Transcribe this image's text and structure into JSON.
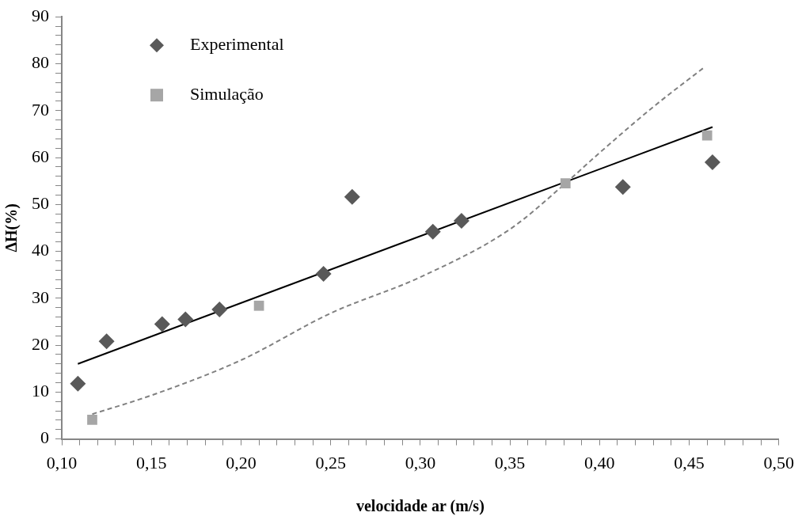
{
  "chart_data": {
    "type": "scatter",
    "xlabel": "velocidade ar (m/s)",
    "ylabel": "ΔH(%)",
    "xlim": [
      0.1,
      0.5
    ],
    "ylim": [
      0,
      90
    ],
    "xticks": [
      {
        "value": 0.1,
        "label": "0,10"
      },
      {
        "value": 0.11,
        "label": null
      },
      {
        "value": 0.12,
        "label": null
      },
      {
        "value": 0.13,
        "label": null
      },
      {
        "value": 0.14,
        "label": null
      },
      {
        "value": 0.15,
        "label": "0,15"
      },
      {
        "value": 0.16,
        "label": null
      },
      {
        "value": 0.17,
        "label": null
      },
      {
        "value": 0.18,
        "label": null
      },
      {
        "value": 0.19,
        "label": null
      },
      {
        "value": 0.2,
        "label": "0,20"
      },
      {
        "value": 0.21,
        "label": null
      },
      {
        "value": 0.22,
        "label": null
      },
      {
        "value": 0.23,
        "label": null
      },
      {
        "value": 0.24,
        "label": null
      },
      {
        "value": 0.25,
        "label": "0,25"
      },
      {
        "value": 0.26,
        "label": null
      },
      {
        "value": 0.27,
        "label": null
      },
      {
        "value": 0.28,
        "label": null
      },
      {
        "value": 0.29,
        "label": null
      },
      {
        "value": 0.3,
        "label": "0,30"
      },
      {
        "value": 0.31,
        "label": null
      },
      {
        "value": 0.32,
        "label": null
      },
      {
        "value": 0.33,
        "label": null
      },
      {
        "value": 0.34,
        "label": null
      },
      {
        "value": 0.35,
        "label": "0,35"
      },
      {
        "value": 0.36,
        "label": null
      },
      {
        "value": 0.37,
        "label": null
      },
      {
        "value": 0.38,
        "label": null
      },
      {
        "value": 0.39,
        "label": null
      },
      {
        "value": 0.4,
        "label": "0,40"
      },
      {
        "value": 0.41,
        "label": null
      },
      {
        "value": 0.42,
        "label": null
      },
      {
        "value": 0.43,
        "label": null
      },
      {
        "value": 0.44,
        "label": null
      },
      {
        "value": 0.45,
        "label": "0,45"
      },
      {
        "value": 0.46,
        "label": null
      },
      {
        "value": 0.47,
        "label": null
      },
      {
        "value": 0.48,
        "label": null
      },
      {
        "value": 0.49,
        "label": null
      },
      {
        "value": 0.5,
        "label": "0,50"
      }
    ],
    "yticks": [
      0,
      {
        "value": 2,
        "label": null
      },
      {
        "value": 4,
        "label": null
      },
      {
        "value": 6,
        "label": null
      },
      {
        "value": 8,
        "label": null
      },
      10,
      {
        "value": 12,
        "label": null
      },
      {
        "value": 14,
        "label": null
      },
      {
        "value": 16,
        "label": null
      },
      {
        "value": 18,
        "label": null
      },
      20,
      {
        "value": 22,
        "label": null
      },
      {
        "value": 24,
        "label": null
      },
      {
        "value": 26,
        "label": null
      },
      {
        "value": 28,
        "label": null
      },
      30,
      {
        "value": 32,
        "label": null
      },
      {
        "value": 34,
        "label": null
      },
      {
        "value": 36,
        "label": null
      },
      {
        "value": 38,
        "label": null
      },
      40,
      {
        "value": 42,
        "label": null
      },
      {
        "value": 44,
        "label": null
      },
      {
        "value": 46,
        "label": null
      },
      {
        "value": 48,
        "label": null
      },
      50,
      {
        "value": 52,
        "label": null
      },
      {
        "value": 54,
        "label": null
      },
      {
        "value": 56,
        "label": null
      },
      {
        "value": 58,
        "label": null
      },
      60,
      {
        "value": 62,
        "label": null
      },
      {
        "value": 64,
        "label": null
      },
      {
        "value": 66,
        "label": null
      },
      {
        "value": 68,
        "label": null
      },
      70,
      {
        "value": 72,
        "label": null
      },
      {
        "value": 74,
        "label": null
      },
      {
        "value": 76,
        "label": null
      },
      {
        "value": 78,
        "label": null
      },
      80,
      {
        "value": 82,
        "label": null
      },
      {
        "value": 84,
        "label": null
      },
      {
        "value": 86,
        "label": null
      },
      {
        "value": 88,
        "label": null
      },
      90
    ],
    "grid": false,
    "legend": "top left",
    "series": [
      {
        "name": "Experimental",
        "marker": "diamond",
        "color": "#595959",
        "x": [
          0.109,
          0.125,
          0.156,
          0.169,
          0.188,
          0.246,
          0.262,
          0.307,
          0.323,
          0.413,
          0.463
        ],
        "values": [
          11.8,
          20.8,
          24.5,
          25.5,
          27.6,
          35.2,
          51.6,
          44.2,
          46.5,
          53.7,
          59.0
        ]
      },
      {
        "name": "Simulação",
        "marker": "square",
        "color": "#a6a6a6",
        "x": [
          0.117,
          0.21,
          0.381,
          0.46
        ],
        "values": [
          4.1,
          28.4,
          54.5,
          64.7
        ]
      },
      {
        "type": "line",
        "marker": "none",
        "line_style": "solid",
        "color": "#000000",
        "x": [
          0.109,
          0.463
        ],
        "values": [
          16.0,
          66.5
        ]
      },
      {
        "type": "line",
        "marker": "none",
        "line_style": "dashed",
        "color": "#808080",
        "x": [
          0.117,
          0.15,
          0.2,
          0.25,
          0.3,
          0.35,
          0.381,
          0.4,
          0.43,
          0.459
        ],
        "values": [
          5.3,
          9.3,
          16.8,
          26.8,
          34.5,
          44.7,
          54.5,
          61,
          70.8,
          79.4
        ]
      }
    ]
  }
}
